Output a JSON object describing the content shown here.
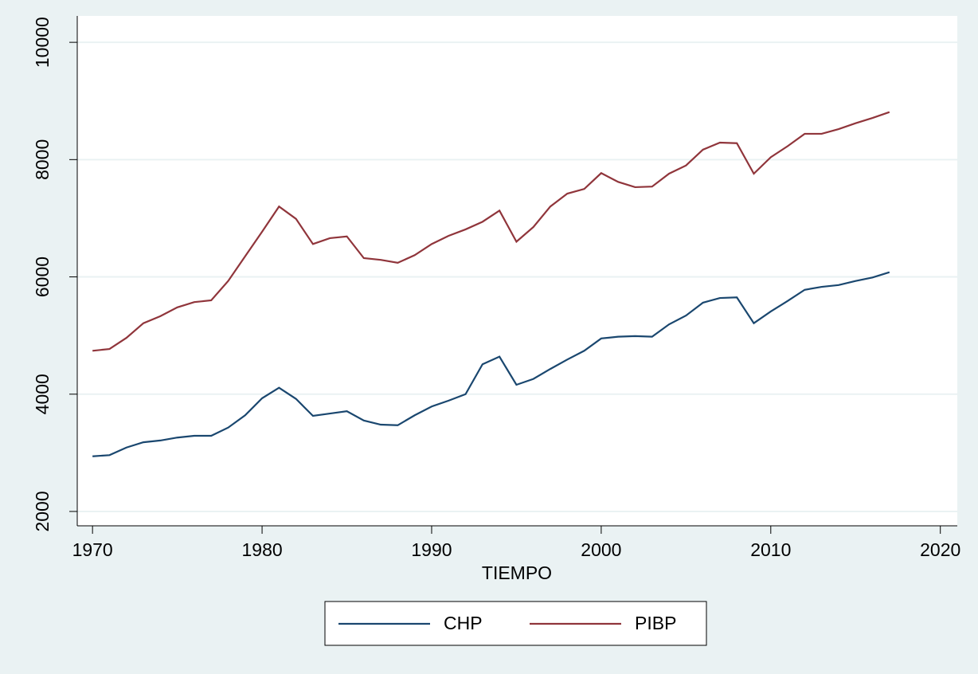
{
  "chart_data": {
    "type": "line",
    "xlabel": "TIEMPO",
    "x": [
      1970,
      1971,
      1972,
      1973,
      1974,
      1975,
      1976,
      1977,
      1978,
      1979,
      1980,
      1981,
      1982,
      1983,
      1984,
      1985,
      1986,
      1987,
      1988,
      1989,
      1990,
      1991,
      1992,
      1993,
      1994,
      1995,
      1996,
      1997,
      1998,
      1999,
      2000,
      2001,
      2002,
      2003,
      2004,
      2005,
      2006,
      2007,
      2008,
      2009,
      2010,
      2011,
      2012,
      2013,
      2014,
      2015,
      2016,
      2017
    ],
    "series": [
      {
        "name": "CHP",
        "color": "#1a476f",
        "values": [
          2940,
          2960,
          3090,
          3180,
          3210,
          3260,
          3290,
          3290,
          3430,
          3640,
          3930,
          4110,
          3920,
          3630,
          3670,
          3710,
          3550,
          3480,
          3470,
          3640,
          3790,
          3890,
          4000,
          4510,
          4640,
          4160,
          4260,
          4430,
          4590,
          4740,
          4950,
          4980,
          4990,
          4980,
          5190,
          5340,
          5560,
          5640,
          5650,
          5210,
          5410,
          5590,
          5780,
          5830,
          5860,
          5930,
          5990,
          6080
        ]
      },
      {
        "name": "PIBP",
        "color": "#90353b",
        "values": [
          4740,
          4770,
          4960,
          5210,
          5330,
          5480,
          5570,
          5600,
          5930,
          6350,
          6770,
          7200,
          6990,
          6560,
          6660,
          6690,
          6320,
          6290,
          6240,
          6370,
          6560,
          6700,
          6810,
          6940,
          7130,
          6600,
          6850,
          7200,
          7420,
          7500,
          7770,
          7620,
          7530,
          7540,
          7760,
          7900,
          8170,
          8290,
          8280,
          7760,
          8040,
          8230,
          8440,
          8440,
          8520,
          8620,
          8710,
          8810
        ]
      }
    ],
    "xlim": [
      1969.1,
      2021
    ],
    "xticks": [
      1970,
      1980,
      1990,
      2000,
      2010,
      2020
    ],
    "ylim": [
      1755,
      10450
    ],
    "yticks": [
      2000,
      4000,
      6000,
      8000,
      10000
    ],
    "grid": true,
    "legend": "bottom"
  }
}
